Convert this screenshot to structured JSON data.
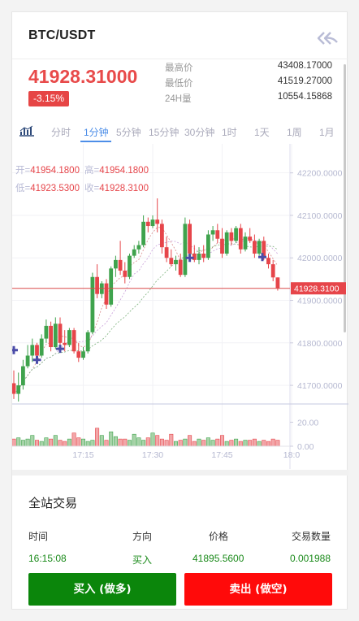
{
  "header": {
    "pair": "BTC/USDT",
    "back_icon": "double-back-arrow-icon"
  },
  "ticker": {
    "price": "41928.31000",
    "change": "-3.15%",
    "stats": [
      {
        "label": "最高价",
        "value": "43408.17000"
      },
      {
        "label": "最低价",
        "value": "41519.27000"
      },
      {
        "label": "24H量",
        "value": "10554.15868"
      }
    ]
  },
  "tabs": {
    "indicator_icon": "chart-bars-icon",
    "items": [
      "分时",
      "1分钟",
      "5分钟",
      "15分钟",
      "30分钟",
      "1时",
      "1天",
      "1周",
      "1月"
    ],
    "active": "1分钟"
  },
  "chart_data": {
    "type": "candlestick",
    "ohlc_readout": {
      "open_label": "开=",
      "open": "41954.1800",
      "high_label": "高=",
      "high": "41954.1800",
      "low_label": "低=",
      "low": "41923.5300",
      "close_label": "收=",
      "close": "41928.3100"
    },
    "y_ticks": [
      "42200.0000",
      "42100.0000",
      "42000.0000",
      "41900.0000",
      "41800.0000",
      "41700.0000"
    ],
    "ylim": [
      41660,
      42230
    ],
    "current_price_label": "41928.3100",
    "current_price": 41928.31,
    "volume_ticks": [
      "20.00",
      "0.00"
    ],
    "volume_max": 25,
    "x_ticks": [
      {
        "label": "17:15",
        "i": 15
      },
      {
        "label": "17:30",
        "i": 30
      },
      {
        "label": "17:45",
        "i": 45
      },
      {
        "label": "18:0",
        "i": 60
      }
    ],
    "colors": {
      "up": "#3fa34d",
      "down": "#e6454a",
      "price_line": "#d94c4c",
      "marker": "#4b4ca8"
    },
    "candles": [
      {
        "o": 41705,
        "h": 41735,
        "l": 41668,
        "c": 41680
      },
      {
        "o": 41680,
        "h": 41730,
        "l": 41662,
        "c": 41700
      },
      {
        "o": 41700,
        "h": 41760,
        "l": 41690,
        "c": 41745
      },
      {
        "o": 41745,
        "h": 41795,
        "l": 41740,
        "c": 41770
      },
      {
        "o": 41770,
        "h": 41810,
        "l": 41755,
        "c": 41795
      },
      {
        "o": 41795,
        "h": 41800,
        "l": 41760,
        "c": 41770
      },
      {
        "o": 41770,
        "h": 41820,
        "l": 41765,
        "c": 41810
      },
      {
        "o": 41810,
        "h": 41855,
        "l": 41800,
        "c": 41840
      },
      {
        "o": 41840,
        "h": 41850,
        "l": 41780,
        "c": 41790
      },
      {
        "o": 41790,
        "h": 41860,
        "l": 41785,
        "c": 41845
      },
      {
        "o": 41845,
        "h": 41860,
        "l": 41790,
        "c": 41800
      },
      {
        "o": 41800,
        "h": 41830,
        "l": 41780,
        "c": 41795
      },
      {
        "o": 41795,
        "h": 41835,
        "l": 41790,
        "c": 41830
      },
      {
        "o": 41830,
        "h": 41835,
        "l": 41775,
        "c": 41780
      },
      {
        "o": 41780,
        "h": 41800,
        "l": 41755,
        "c": 41765
      },
      {
        "o": 41765,
        "h": 41790,
        "l": 41760,
        "c": 41780
      },
      {
        "o": 41780,
        "h": 41830,
        "l": 41775,
        "c": 41825
      },
      {
        "o": 41825,
        "h": 41965,
        "l": 41820,
        "c": 41955
      },
      {
        "o": 41955,
        "h": 41985,
        "l": 41905,
        "c": 41915
      },
      {
        "o": 41915,
        "h": 41945,
        "l": 41905,
        "c": 41940
      },
      {
        "o": 41940,
        "h": 41950,
        "l": 41880,
        "c": 41890
      },
      {
        "o": 41890,
        "h": 41980,
        "l": 41885,
        "c": 41975
      },
      {
        "o": 41975,
        "h": 42005,
        "l": 41955,
        "c": 41995
      },
      {
        "o": 41995,
        "h": 42040,
        "l": 41960,
        "c": 41970
      },
      {
        "o": 41970,
        "h": 41990,
        "l": 41940,
        "c": 41955
      },
      {
        "o": 41955,
        "h": 42010,
        "l": 41950,
        "c": 42005
      },
      {
        "o": 42005,
        "h": 42030,
        "l": 42000,
        "c": 42020
      },
      {
        "o": 42020,
        "h": 42040,
        "l": 42010,
        "c": 42030
      },
      {
        "o": 42030,
        "h": 42100,
        "l": 42025,
        "c": 42085
      },
      {
        "o": 42085,
        "h": 42095,
        "l": 42060,
        "c": 42075
      },
      {
        "o": 42075,
        "h": 42100,
        "l": 42070,
        "c": 42090
      },
      {
        "o": 42090,
        "h": 42140,
        "l": 42060,
        "c": 42080
      },
      {
        "o": 42080,
        "h": 42090,
        "l": 42010,
        "c": 42025
      },
      {
        "o": 42025,
        "h": 42050,
        "l": 41990,
        "c": 42000
      },
      {
        "o": 42000,
        "h": 42020,
        "l": 41980,
        "c": 41985
      },
      {
        "o": 41985,
        "h": 42005,
        "l": 41970,
        "c": 41995
      },
      {
        "o": 41995,
        "h": 42010,
        "l": 41955,
        "c": 41960
      },
      {
        "o": 41960,
        "h": 42095,
        "l": 41955,
        "c": 42080
      },
      {
        "o": 42080,
        "h": 42090,
        "l": 42000,
        "c": 42010
      },
      {
        "o": 42010,
        "h": 42030,
        "l": 41990,
        "c": 41995
      },
      {
        "o": 41995,
        "h": 42025,
        "l": 41985,
        "c": 42010
      },
      {
        "o": 42010,
        "h": 42030,
        "l": 41990,
        "c": 42000
      },
      {
        "o": 42000,
        "h": 42065,
        "l": 41995,
        "c": 42055
      },
      {
        "o": 42055,
        "h": 42075,
        "l": 42040,
        "c": 42065
      },
      {
        "o": 42065,
        "h": 42080,
        "l": 42035,
        "c": 42045
      },
      {
        "o": 42045,
        "h": 42070,
        "l": 42000,
        "c": 42010
      },
      {
        "o": 42010,
        "h": 42065,
        "l": 42005,
        "c": 42060
      },
      {
        "o": 42060,
        "h": 42070,
        "l": 42030,
        "c": 42040
      },
      {
        "o": 42040,
        "h": 42075,
        "l": 42035,
        "c": 42070
      },
      {
        "o": 42070,
        "h": 42080,
        "l": 42010,
        "c": 42020
      },
      {
        "o": 42020,
        "h": 42060,
        "l": 42015,
        "c": 42050
      },
      {
        "o": 42050,
        "h": 42070,
        "l": 42035,
        "c": 42040
      },
      {
        "o": 42040,
        "h": 42055,
        "l": 42000,
        "c": 42010
      },
      {
        "o": 42010,
        "h": 42045,
        "l": 42005,
        "c": 42040
      },
      {
        "o": 42040,
        "h": 42050,
        "l": 41995,
        "c": 42000
      },
      {
        "o": 42000,
        "h": 42010,
        "l": 41975,
        "c": 41985
      },
      {
        "o": 41985,
        "h": 41995,
        "l": 41945,
        "c": 41954
      },
      {
        "o": 41954,
        "h": 41954,
        "l": 41923,
        "c": 41928
      }
    ],
    "volumes": [
      6,
      7,
      5,
      6,
      9,
      5,
      4,
      7,
      6,
      9,
      5,
      4,
      6,
      11,
      7,
      6,
      4,
      5,
      15,
      9,
      5,
      12,
      8,
      6,
      6,
      5,
      10,
      7,
      5,
      7,
      11,
      9,
      6,
      5,
      10,
      4,
      5,
      6,
      9,
      4,
      6,
      5,
      7,
      5,
      6,
      9,
      4,
      5,
      6,
      4,
      5,
      5,
      6,
      4,
      5,
      4,
      6,
      5
    ],
    "markers": [
      {
        "i": 0,
        "v": 41783
      },
      {
        "i": 5,
        "v": 41760
      },
      {
        "i": 10,
        "v": 41786
      },
      {
        "i": 38,
        "v": 42000
      },
      {
        "i": 60,
        "v": 42002
      }
    ]
  },
  "trades": {
    "title": "全站交易",
    "headers": [
      "时间",
      "方向",
      "价格",
      "交易数量"
    ],
    "rows": [
      {
        "time": "16:15:08",
        "side": "买入",
        "price": "41895.5600",
        "qty": "0.001988"
      }
    ]
  },
  "actions": {
    "buy_label": "买入 (做多)",
    "sell_label": "卖出 (做空)"
  }
}
